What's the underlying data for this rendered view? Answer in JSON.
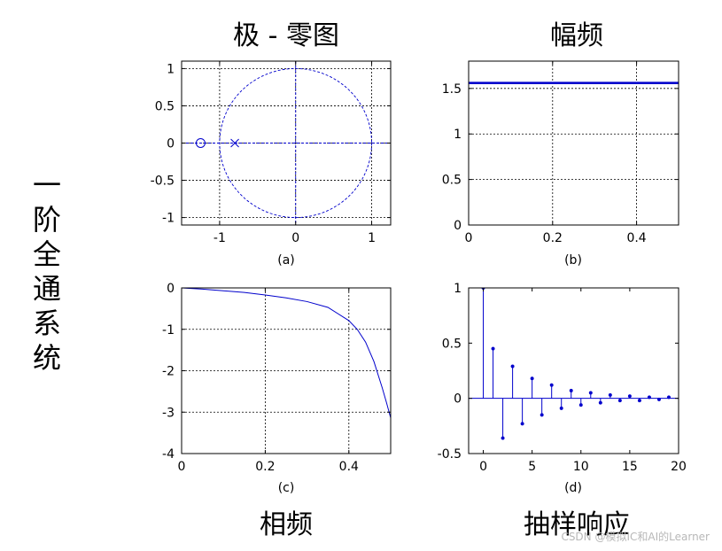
{
  "figure": {
    "side_title_chars": [
      "一",
      "阶",
      "全",
      "通",
      "系",
      "统"
    ],
    "watermark": "CSDN @模拟IC和AI的Learner"
  },
  "colors": {
    "series": "#0000cc",
    "axis": "#000000",
    "grid": "#000000"
  },
  "chart_data": [
    {
      "id": "a",
      "type": "scatter",
      "title": "极 - 零图",
      "caption": "(a)",
      "xlim": [
        -1.5,
        1.25
      ],
      "ylim": [
        -1.1,
        1.1
      ],
      "xticks": [
        -1,
        0,
        1
      ],
      "xtick_labels": [
        "-1",
        "0",
        "1"
      ],
      "yticks": [
        -1,
        -0.5,
        0,
        0.5,
        1
      ],
      "ytick_labels": [
        "-1",
        "-0.5",
        "0",
        "0.5",
        "1"
      ],
      "grid": true,
      "unit_circle": true,
      "zeros": [
        {
          "re": -1.25,
          "im": 0
        }
      ],
      "poles": [
        {
          "re": -0.8,
          "im": 0
        }
      ]
    },
    {
      "id": "b",
      "type": "line",
      "title": "幅频",
      "caption": "(b)",
      "xlim": [
        0,
        0.5
      ],
      "ylim": [
        0,
        1.8
      ],
      "xticks": [
        0,
        0.2,
        0.4
      ],
      "xtick_labels": [
        "0",
        "0.2",
        "0.4"
      ],
      "yticks": [
        0,
        0.5,
        1,
        1.5
      ],
      "ytick_labels": [
        "0",
        "0.5",
        "1",
        "1.5"
      ],
      "grid": true,
      "x": [
        0,
        0.5
      ],
      "y": [
        1.56,
        1.56
      ]
    },
    {
      "id": "c",
      "type": "line",
      "title": "相频",
      "caption": "(c)",
      "xlim": [
        0,
        0.5
      ],
      "ylim": [
        -4,
        0
      ],
      "xticks": [
        0,
        0.2,
        0.4
      ],
      "xtick_labels": [
        "0",
        "0.2",
        "0.4"
      ],
      "yticks": [
        -4,
        -3,
        -2,
        -1,
        0
      ],
      "ytick_labels": [
        "-4",
        "-3",
        "-2",
        "-1",
        "0"
      ],
      "grid": true,
      "x": [
        0,
        0.05,
        0.1,
        0.15,
        0.2,
        0.25,
        0.3,
        0.35,
        0.4,
        0.42,
        0.44,
        0.46,
        0.48,
        0.49,
        0.5
      ],
      "y": [
        0,
        -0.03,
        -0.07,
        -0.11,
        -0.17,
        -0.24,
        -0.33,
        -0.47,
        -0.79,
        -1.0,
        -1.31,
        -1.78,
        -2.42,
        -2.77,
        -3.14
      ]
    },
    {
      "id": "d",
      "type": "scatter",
      "subtype": "stem",
      "title": "抽样响应",
      "caption": "(d)",
      "xlim": [
        -1.5,
        20
      ],
      "ylim": [
        -0.5,
        1
      ],
      "xticks": [
        0,
        5,
        10,
        15,
        20
      ],
      "xtick_labels": [
        "0",
        "5",
        "10",
        "15",
        "20"
      ],
      "yticks": [
        -0.5,
        0,
        0.5,
        1
      ],
      "ytick_labels": [
        "-0.5",
        "0",
        "0.5",
        "1"
      ],
      "grid": false,
      "x": [
        0,
        1,
        2,
        3,
        4,
        5,
        6,
        7,
        8,
        9,
        10,
        11,
        12,
        13,
        14,
        15,
        16,
        17,
        18,
        19
      ],
      "y": [
        1.0,
        0.45,
        -0.36,
        0.29,
        -0.23,
        0.18,
        -0.15,
        0.12,
        -0.09,
        0.07,
        -0.06,
        0.05,
        -0.04,
        0.03,
        -0.02,
        0.02,
        -0.02,
        0.01,
        -0.01,
        0.01
      ]
    }
  ]
}
